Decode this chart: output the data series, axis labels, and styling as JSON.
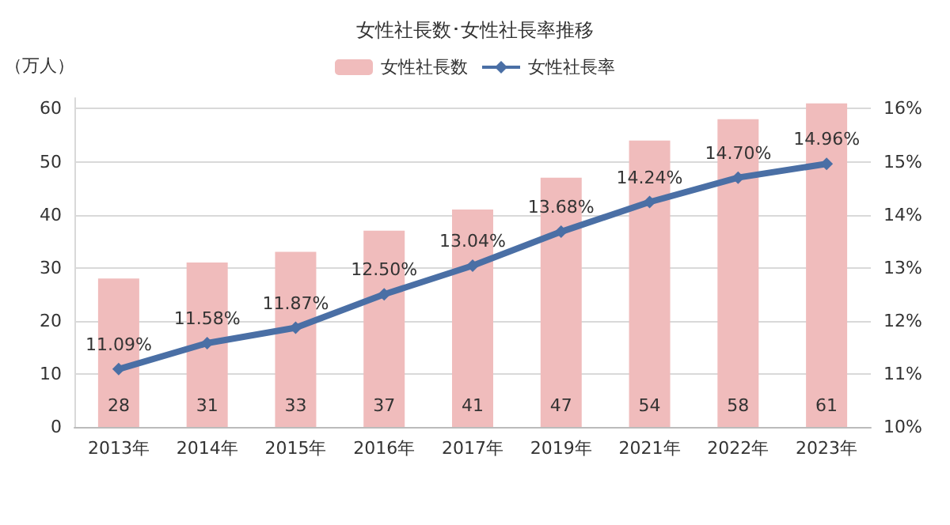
{
  "chart_data": {
    "type": "bar",
    "title": "女性社長数･女性社長率推移",
    "ylabel": "（万人）",
    "categories": [
      "2013年",
      "2014年",
      "2015年",
      "2016年",
      "2017年",
      "2019年",
      "2021年",
      "2022年",
      "2023年"
    ],
    "series": [
      {
        "name": "女性社長数",
        "color": "#f0bcbc",
        "values": [
          28,
          31,
          33,
          37,
          41,
          47,
          54,
          58,
          61
        ]
      },
      {
        "name": "女性社長率",
        "type": "line",
        "axis": "y2",
        "color": "#4a6fa5",
        "marker": "diamond",
        "values": [
          11.09,
          11.58,
          11.87,
          12.5,
          13.04,
          13.68,
          14.24,
          14.7,
          14.96
        ],
        "value_labels": [
          "11.09%",
          "11.58%",
          "11.87%",
          "12.50%",
          "13.04%",
          "13.68%",
          "14.24%",
          "14.70%",
          "14.96%"
        ]
      }
    ],
    "ylim": [
      0,
      62
    ],
    "yticks": [
      0,
      10,
      20,
      30,
      40,
      50,
      60
    ],
    "y2lim": [
      10,
      16.2
    ],
    "y2ticks": [
      {
        "value": 10,
        "label": "10%"
      },
      {
        "value": 11,
        "label": "11%"
      },
      {
        "value": 12,
        "label": "12%"
      },
      {
        "value": 13,
        "label": "13%"
      },
      {
        "value": 14,
        "label": "14%"
      },
      {
        "value": 15,
        "label": "15%"
      },
      {
        "value": 16,
        "label": "16%"
      }
    ],
    "grid": "y",
    "legend": "top",
    "data_labels": true
  }
}
